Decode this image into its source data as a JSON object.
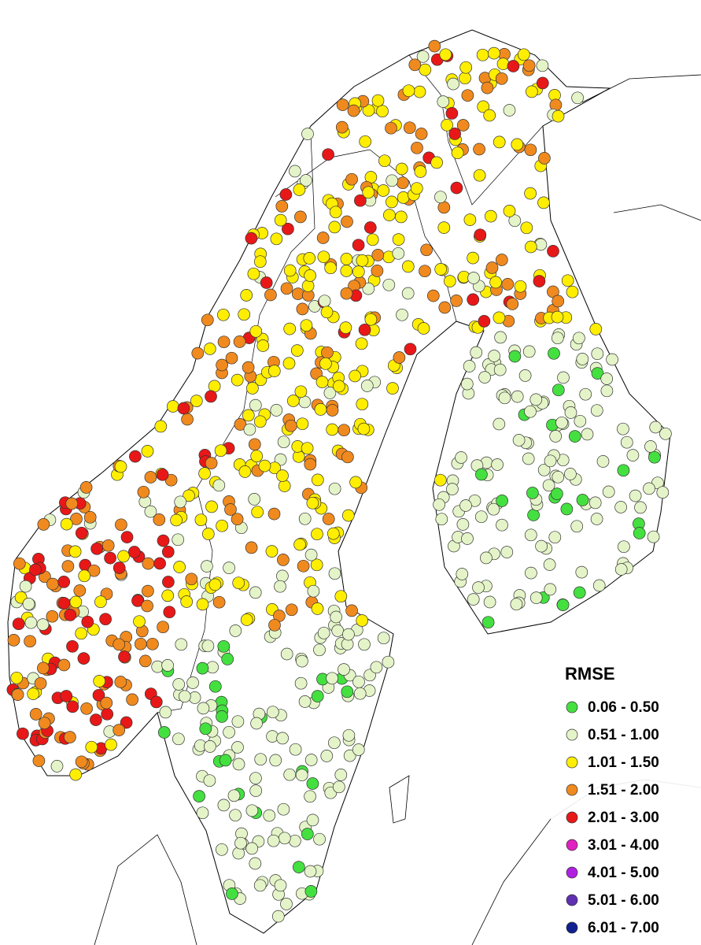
{
  "legend": {
    "title": "RMSE",
    "items": [
      {
        "label": "0.06 - 0.50",
        "color": "#44e040"
      },
      {
        "label": "0.51 - 1.00",
        "color": "#e4f4c8"
      },
      {
        "label": "1.01 - 1.50",
        "color": "#ffee00"
      },
      {
        "label": "1.51 - 2.00",
        "color": "#f08a1e"
      },
      {
        "label": "2.01 - 3.00",
        "color": "#e81818"
      },
      {
        "label": "3.01 - 4.00",
        "color": "#e020c0"
      },
      {
        "label": "4.01 - 5.00",
        "color": "#b020e0"
      },
      {
        "label": "5.01 - 6.00",
        "color": "#6030b0"
      },
      {
        "label": "6.01 - 7.00",
        "color": "#102090"
      }
    ]
  }
}
